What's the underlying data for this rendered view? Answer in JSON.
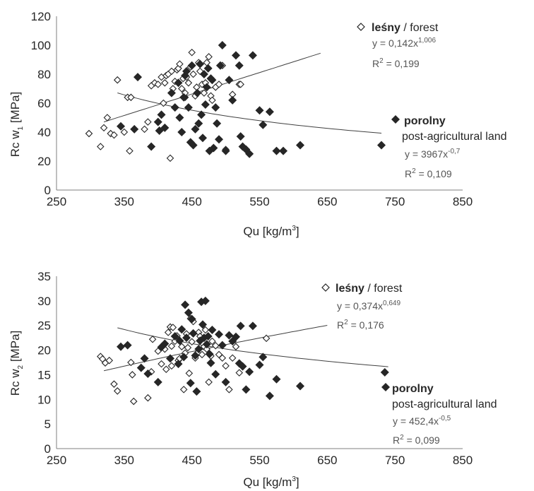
{
  "chart_data": [
    {
      "type": "scatter",
      "xlabel": {
        "main": "Qu [kg/m",
        "sup": "3",
        "end": "]"
      },
      "ylabel": {
        "main": "Rc w",
        "sub": "1",
        "end": " [MPa]"
      },
      "xlim": [
        250,
        850
      ],
      "ylim": [
        0,
        120
      ],
      "xticks": [
        250,
        350,
        450,
        550,
        650,
        750,
        850
      ],
      "yticks": [
        0,
        20,
        40,
        60,
        80,
        100,
        120
      ],
      "grid": false,
      "legend_placement": "right",
      "series": [
        {
          "name": "leśny / forest",
          "name_bold": "leśny",
          "name_rest": " / forest",
          "marker": "open-diamond",
          "color": "#262626",
          "equation": {
            "main": "y = 0,142x",
            "sup": "1,006"
          },
          "r2": {
            "pre": "R",
            "sup": "2",
            "post": " = 0,199"
          },
          "trend": {
            "a": 0.142,
            "b": 1.006,
            "x_range": [
              320,
              640
            ]
          },
          "points": [
            [
              298,
              39
            ],
            [
              315,
              30
            ],
            [
              320,
              43
            ],
            [
              325,
              50
            ],
            [
              330,
              39
            ],
            [
              335,
              38
            ],
            [
              340,
              76
            ],
            [
              355,
              64
            ],
            [
              358,
              27
            ],
            [
              360,
              64
            ],
            [
              385,
              47
            ],
            [
              390,
              72
            ],
            [
              395,
              74
            ],
            [
              400,
              73
            ],
            [
              405,
              78
            ],
            [
              408,
              60
            ],
            [
              410,
              74
            ],
            [
              412,
              79
            ],
            [
              415,
              80
            ],
            [
              418,
              22
            ],
            [
              420,
              82
            ],
            [
              422,
              70
            ],
            [
              425,
              75
            ],
            [
              428,
              83
            ],
            [
              430,
              84
            ],
            [
              432,
              87
            ],
            [
              435,
              70
            ],
            [
              437,
              77
            ],
            [
              440,
              64
            ],
            [
              442,
              78
            ],
            [
              445,
              74
            ],
            [
              448,
              85
            ],
            [
              450,
              95
            ],
            [
              452,
              80
            ],
            [
              455,
              65
            ],
            [
              457,
              71
            ],
            [
              460,
              88
            ],
            [
              462,
              82
            ],
            [
              465,
              73
            ],
            [
              468,
              67
            ],
            [
              470,
              74
            ],
            [
              472,
              88
            ],
            [
              475,
              92
            ],
            [
              478,
              65
            ],
            [
              480,
              62
            ],
            [
              485,
              71
            ],
            [
              490,
              73
            ],
            [
              495,
              86
            ],
            [
              500,
              28
            ],
            [
              510,
              66
            ],
            [
              520,
              73
            ],
            [
              522,
              73
            ],
            [
              350,
              40
            ],
            [
              380,
              42
            ],
            [
              440,
              67
            ]
          ]
        },
        {
          "name": "porolny post-agricultural land",
          "name_bold": "porolny",
          "name_rest": "post-agricultural land",
          "marker": "filled-diamond",
          "color": "#262626",
          "equation": {
            "main": "y = 3967x",
            "sup": "-0,7"
          },
          "r2": {
            "pre": "R",
            "sup": "2",
            "post": " = 0,109"
          },
          "trend": {
            "a": 3967,
            "b": -0.7,
            "x_range": [
              340,
              730
            ]
          },
          "points": [
            [
              345,
              44
            ],
            [
              365,
              42
            ],
            [
              370,
              78
            ],
            [
              390,
              30
            ],
            [
              400,
              47
            ],
            [
              402,
              41
            ],
            [
              405,
              52
            ],
            [
              410,
              43
            ],
            [
              420,
              67
            ],
            [
              425,
              57
            ],
            [
              430,
              74
            ],
            [
              432,
              50
            ],
            [
              435,
              40
            ],
            [
              438,
              64
            ],
            [
              440,
              79
            ],
            [
              442,
              82
            ],
            [
              445,
              57
            ],
            [
              448,
              33
            ],
            [
              450,
              86
            ],
            [
              452,
              31
            ],
            [
              455,
              42
            ],
            [
              458,
              67
            ],
            [
              460,
              46
            ],
            [
              462,
              87
            ],
            [
              464,
              52
            ],
            [
              466,
              36
            ],
            [
              468,
              80
            ],
            [
              470,
              59
            ],
            [
              472,
              71
            ],
            [
              474,
              84
            ],
            [
              476,
              27
            ],
            [
              478,
              77
            ],
            [
              480,
              76
            ],
            [
              482,
              29
            ],
            [
              485,
              57
            ],
            [
              487,
              46
            ],
            [
              490,
              35
            ],
            [
              492,
              86
            ],
            [
              495,
              100
            ],
            [
              500,
              27
            ],
            [
              505,
              76
            ],
            [
              510,
              62
            ],
            [
              515,
              93
            ],
            [
              520,
              86
            ],
            [
              522,
              37
            ],
            [
              525,
              30
            ],
            [
              530,
              28
            ],
            [
              535,
              25
            ],
            [
              540,
              93
            ],
            [
              550,
              55
            ],
            [
              555,
              45
            ],
            [
              565,
              54
            ],
            [
              575,
              27
            ],
            [
              585,
              27
            ],
            [
              610,
              31
            ],
            [
              730,
              31
            ]
          ]
        }
      ]
    },
    {
      "type": "scatter",
      "xlabel": {
        "main": "Qu [kg/m",
        "sup": "3",
        "end": "]"
      },
      "ylabel": {
        "main": "Rc w",
        "sub": "2",
        "end": " [MPa]"
      },
      "xlim": [
        250,
        850
      ],
      "ylim": [
        0,
        35
      ],
      "xticks": [
        250,
        350,
        450,
        550,
        650,
        750,
        850
      ],
      "yticks": [
        0,
        5,
        10,
        15,
        20,
        25,
        30,
        35
      ],
      "grid": false,
      "legend_placement": "right",
      "series": [
        {
          "name": "leśny / forest",
          "name_bold": "leśny",
          "name_rest": " / forest",
          "marker": "open-diamond",
          "color": "#262626",
          "equation": {
            "main": "y = 0,374x",
            "sup": "0,649"
          },
          "r2": {
            "pre": "R",
            "sup": "2",
            "post": " = 0,176"
          },
          "trend": {
            "a": 0.374,
            "b": 0.649,
            "x_range": [
              320,
              650
            ]
          },
          "points": [
            [
              315,
              18.7
            ],
            [
              318,
              18.2
            ],
            [
              322,
              17.4
            ],
            [
              328,
              17.9
            ],
            [
              335,
              13.1
            ],
            [
              340,
              11.7
            ],
            [
              360,
              17.5
            ],
            [
              362,
              15
            ],
            [
              364,
              9.6
            ],
            [
              385,
              10.3
            ],
            [
              390,
              15.6
            ],
            [
              392,
              22.2
            ],
            [
              400,
              19.8
            ],
            [
              405,
              17.2
            ],
            [
              410,
              20.2
            ],
            [
              412,
              16.1
            ],
            [
              415,
              23.6
            ],
            [
              418,
              24.7
            ],
            [
              420,
              20.8
            ],
            [
              422,
              24.6
            ],
            [
              425,
              21.8
            ],
            [
              428,
              22.9
            ],
            [
              430,
              17.9
            ],
            [
              432,
              18.3
            ],
            [
              435,
              20.7
            ],
            [
              438,
              12
            ],
            [
              440,
              19.4
            ],
            [
              442,
              23.3
            ],
            [
              444,
              20.5
            ],
            [
              446,
              15.3
            ],
            [
              448,
              26.4
            ],
            [
              450,
              21.7
            ],
            [
              452,
              25.8
            ],
            [
              455,
              18.4
            ],
            [
              458,
              19.4
            ],
            [
              460,
              23.6
            ],
            [
              462,
              22.8
            ],
            [
              465,
              19.1
            ],
            [
              468,
              20.7
            ],
            [
              470,
              24.1
            ],
            [
              472,
              20.2
            ],
            [
              475,
              13.5
            ],
            [
              478,
              18.8
            ],
            [
              480,
              21.8
            ],
            [
              485,
              20.9
            ],
            [
              490,
              19.1
            ],
            [
              495,
              18.4
            ],
            [
              500,
              16.8
            ],
            [
              505,
              12
            ],
            [
              510,
              18.4
            ],
            [
              515,
              20.7
            ],
            [
              520,
              15.4
            ],
            [
              560,
              22.4
            ],
            [
              420,
              16.8
            ]
          ]
        },
        {
          "name": "porolny post-agricultural land",
          "name_bold": "porolny",
          "name_rest": "post-agricultural land",
          "marker": "filled-diamond",
          "color": "#262626",
          "equation": {
            "main": "y = 452,4x",
            "sup": "-0,5"
          },
          "r2": {
            "pre": "R",
            "sup": "2",
            "post": " = 0,099"
          },
          "trend": {
            "a": 452.4,
            "b": -0.5,
            "x_range": [
              340,
              740
            ]
          },
          "points": [
            [
              345,
              20.7
            ],
            [
              355,
              21
            ],
            [
              375,
              16.4
            ],
            [
              380,
              18.3
            ],
            [
              385,
              15.2
            ],
            [
              400,
              13.5
            ],
            [
              405,
              20.6
            ],
            [
              410,
              21.3
            ],
            [
              418,
              18.3
            ],
            [
              425,
              22.8
            ],
            [
              430,
              17.2
            ],
            [
              432,
              21.9
            ],
            [
              435,
              24.2
            ],
            [
              438,
              18.6
            ],
            [
              440,
              29.2
            ],
            [
              442,
              22.5
            ],
            [
              445,
              27.6
            ],
            [
              448,
              13.3
            ],
            [
              450,
              26.3
            ],
            [
              452,
              23.4
            ],
            [
              455,
              18.9
            ],
            [
              457,
              11.6
            ],
            [
              460,
              20.2
            ],
            [
              462,
              21.9
            ],
            [
              464,
              29.8
            ],
            [
              466,
              25.2
            ],
            [
              468,
              22.5
            ],
            [
              470,
              30
            ],
            [
              472,
              21.2
            ],
            [
              474,
              22.8
            ],
            [
              476,
              19.2
            ],
            [
              478,
              17.4
            ],
            [
              480,
              24.1
            ],
            [
              485,
              15.1
            ],
            [
              490,
              23.2
            ],
            [
              495,
              21
            ],
            [
              500,
              13.5
            ],
            [
              505,
              23
            ],
            [
              510,
              21.8
            ],
            [
              515,
              22.7
            ],
            [
              520,
              17.3
            ],
            [
              522,
              24.9
            ],
            [
              525,
              16.7
            ],
            [
              530,
              12
            ],
            [
              535,
              15.6
            ],
            [
              540,
              24.9
            ],
            [
              550,
              17
            ],
            [
              555,
              18.6
            ],
            [
              565,
              10.7
            ],
            [
              575,
              14.1
            ],
            [
              610,
              12.7
            ],
            [
              735,
              15.5
            ]
          ]
        }
      ]
    }
  ]
}
